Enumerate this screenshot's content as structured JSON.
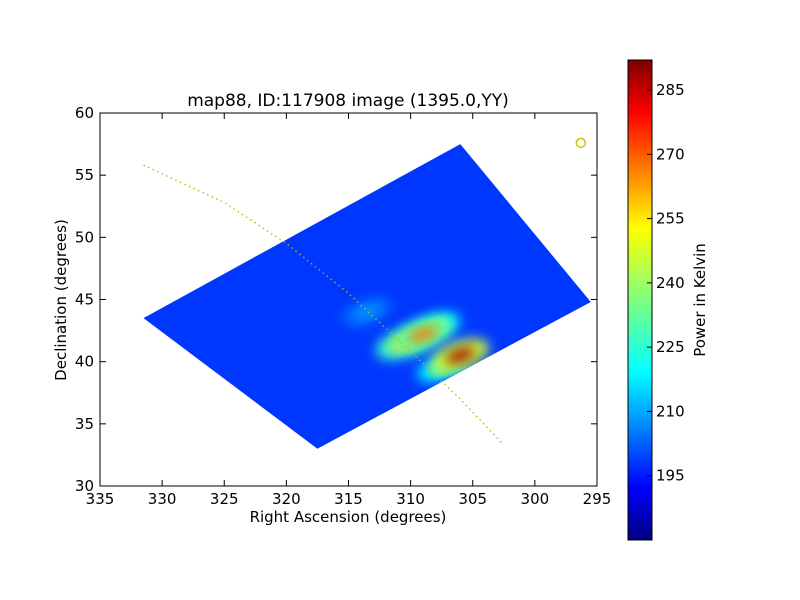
{
  "chart_data": {
    "type": "heatmap",
    "title": "map88, ID:117908 image (1395.0,YY)",
    "xlabel": "Right Ascension (degrees)",
    "ylabel": "Declination (degrees)",
    "xlim": [
      335,
      295
    ],
    "ylim": [
      30,
      60
    ],
    "x_ticks": [
      "335",
      "330",
      "325",
      "320",
      "315",
      "310",
      "305",
      "300",
      "295"
    ],
    "y_ticks": [
      "30",
      "35",
      "40",
      "45",
      "50",
      "55",
      "60"
    ],
    "colorbar": {
      "label": "Power in Kelvin",
      "range": [
        180,
        292
      ],
      "ticks": [
        "195",
        "210",
        "225",
        "240",
        "255",
        "270",
        "285"
      ],
      "colormap": "jet"
    },
    "footprint_corners_ra_dec": [
      [
        331.5,
        43.5
      ],
      [
        317.5,
        33.0
      ],
      [
        295.5,
        44.8
      ],
      [
        306.0,
        57.5
      ]
    ],
    "background_level": 200,
    "hotspots": [
      {
        "ra": 306.0,
        "dec": 40.5,
        "value": 288
      },
      {
        "ra": 309.0,
        "dec": 42.2,
        "value": 265
      },
      {
        "ra": 310.5,
        "dec": 41.5,
        "value": 255
      },
      {
        "ra": 307.5,
        "dec": 39.5,
        "value": 240
      },
      {
        "ra": 308.0,
        "dec": 42.8,
        "value": 245
      },
      {
        "ra": 313.5,
        "dec": 44.0,
        "value": 212
      }
    ],
    "galactic_plane_curve": [
      [
        331.5,
        55.8
      ],
      [
        325,
        52.8
      ],
      [
        320,
        49.5
      ],
      [
        315,
        45.5
      ],
      [
        310,
        40.8
      ],
      [
        306,
        37.0
      ],
      [
        302.5,
        33.3
      ]
    ],
    "marker": {
      "ra": 296.3,
      "dec": 57.6,
      "shape": "open-circle",
      "color": "#c8c800"
    },
    "colors": {
      "plane_curve": "#b8b800",
      "frame": "#000000"
    }
  }
}
